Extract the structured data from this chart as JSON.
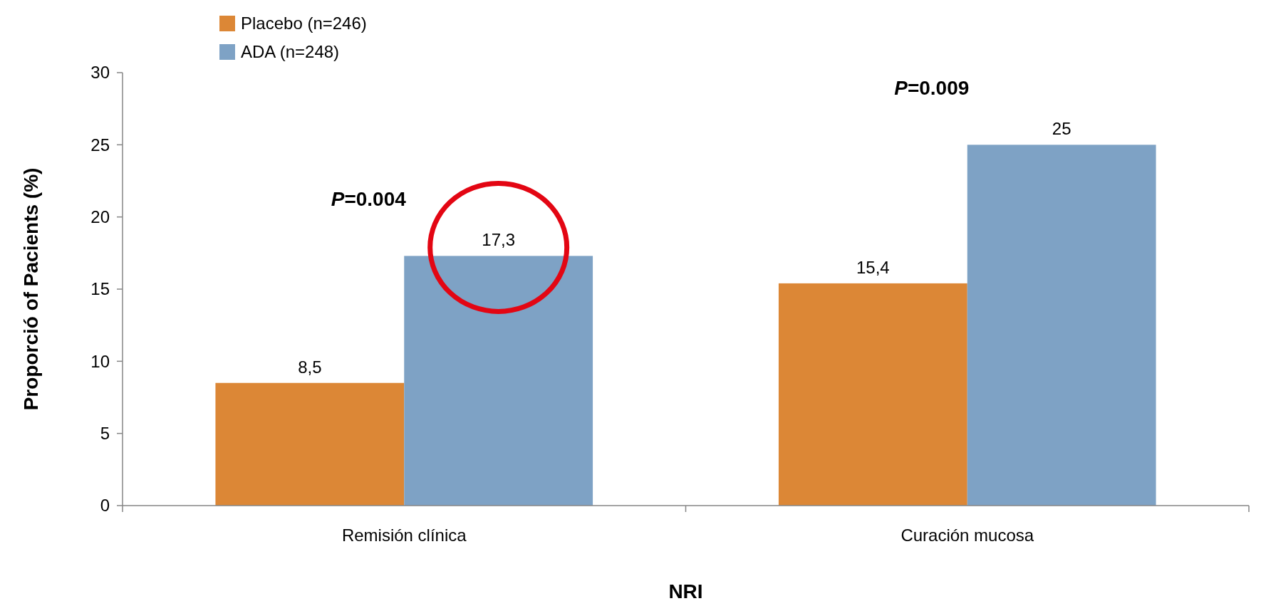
{
  "chart_data": {
    "type": "bar",
    "xlabel": "NRI",
    "ylabel": "Proporció of Pacients (%)",
    "categories": [
      "Remisión clínica",
      "Curación mucosa"
    ],
    "series": [
      {
        "name": "Placebo (n=246)",
        "color": "#dc8736",
        "values": [
          8.5,
          15.4
        ],
        "value_labels": [
          "8,5",
          "15,4"
        ]
      },
      {
        "name": "ADA (n=248)",
        "color": "#7ea2c5",
        "values": [
          17.3,
          25
        ],
        "value_labels": [
          "17,3",
          "25"
        ]
      }
    ],
    "ylim": [
      0,
      30
    ],
    "yticks": [
      0,
      5,
      10,
      15,
      20,
      25,
      30
    ],
    "grid": false,
    "legend": "top left",
    "annotations": [
      "P=0.004",
      "P=0.009"
    ]
  }
}
